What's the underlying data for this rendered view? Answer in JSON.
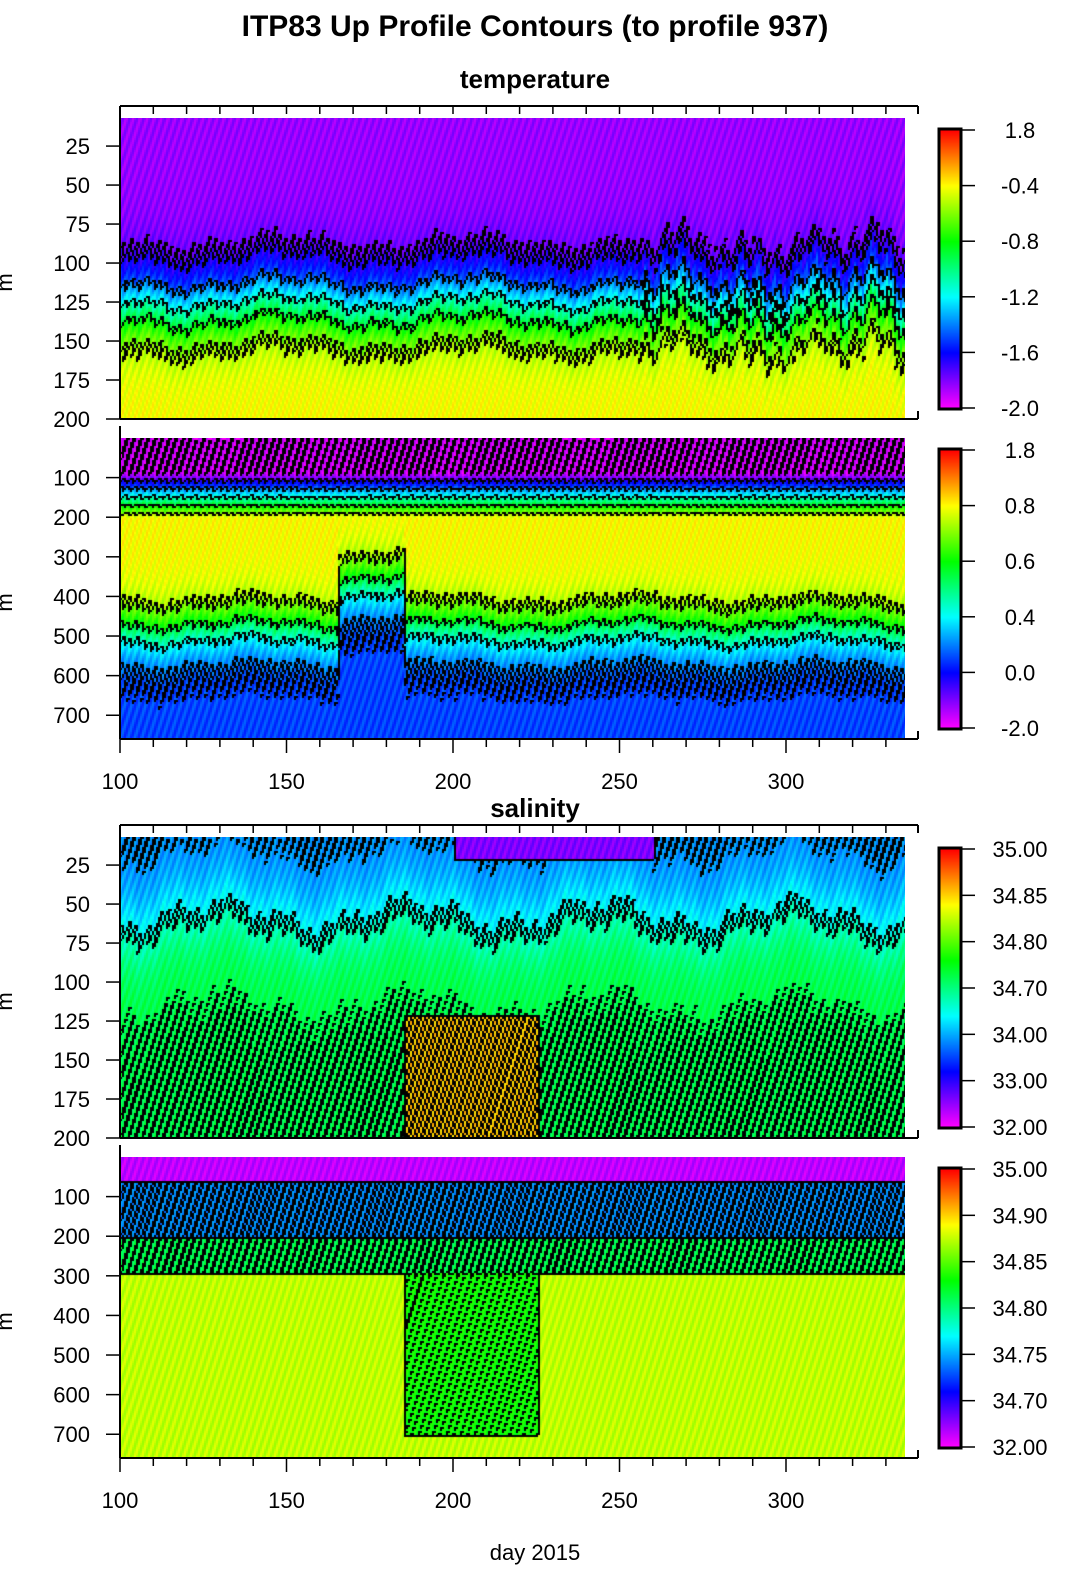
{
  "title": "ITP83 Up Profile Contours (to profile 937)",
  "chart_data": [
    {
      "type": "heatmap",
      "section": "temperature",
      "section_title": "temperature",
      "ylabel": "m",
      "xlim": [
        100,
        336
      ],
      "ylim": [
        200,
        7
      ],
      "xticks": [],
      "yticks": [
        "25",
        "50",
        "75",
        "100",
        "125",
        "150",
        "175",
        "200"
      ],
      "colorbar": [
        "1.8",
        "-0.4",
        "-0.8",
        "-1.2",
        "-1.6",
        "-2.0"
      ],
      "colorbar_ticks": [
        "1.8",
        "-0.4",
        "-0.8",
        "-1.2",
        "-1.6",
        "-2.0"
      ]
    },
    {
      "type": "heatmap",
      "section": "temperature",
      "ylabel": "m",
      "xlim": [
        100,
        336
      ],
      "ylim": [
        760,
        0
      ],
      "xticks": [
        "100",
        "150",
        "200",
        "250",
        "300"
      ],
      "yticks": [
        "100",
        "200",
        "300",
        "400",
        "500",
        "600",
        "700"
      ],
      "colorbar_ticks": [
        "1.8",
        "0.8",
        "0.6",
        "0.4",
        "0.0",
        "-2.0"
      ]
    },
    {
      "type": "heatmap",
      "section": "salinity",
      "section_title": "salinity",
      "ylabel": "m",
      "xlim": [
        100,
        336
      ],
      "ylim": [
        200,
        7
      ],
      "xticks": [],
      "yticks": [
        "25",
        "50",
        "75",
        "100",
        "125",
        "150",
        "175",
        "200"
      ],
      "colorbar_ticks": [
        "35.00",
        "34.85",
        "34.80",
        "34.70",
        "34.00",
        "33.00",
        "32.00"
      ]
    },
    {
      "type": "heatmap",
      "section": "salinity",
      "ylabel": "m",
      "xlim": [
        100,
        336
      ],
      "ylim": [
        760,
        0
      ],
      "xticks": [
        "100",
        "150",
        "200",
        "250",
        "300"
      ],
      "yticks": [
        "100",
        "200",
        "300",
        "400",
        "500",
        "600",
        "700"
      ],
      "colorbar_ticks": [
        "35.00",
        "34.90",
        "34.85",
        "34.80",
        "34.75",
        "34.70",
        "32.00"
      ],
      "xlabel": "day 2015"
    }
  ],
  "colormap": [
    "#ff00ff",
    "#7f00ff",
    "#0000ff",
    "#00ffff",
    "#00ff00",
    "#ffff00",
    "#ff8000",
    "#ff0000"
  ]
}
